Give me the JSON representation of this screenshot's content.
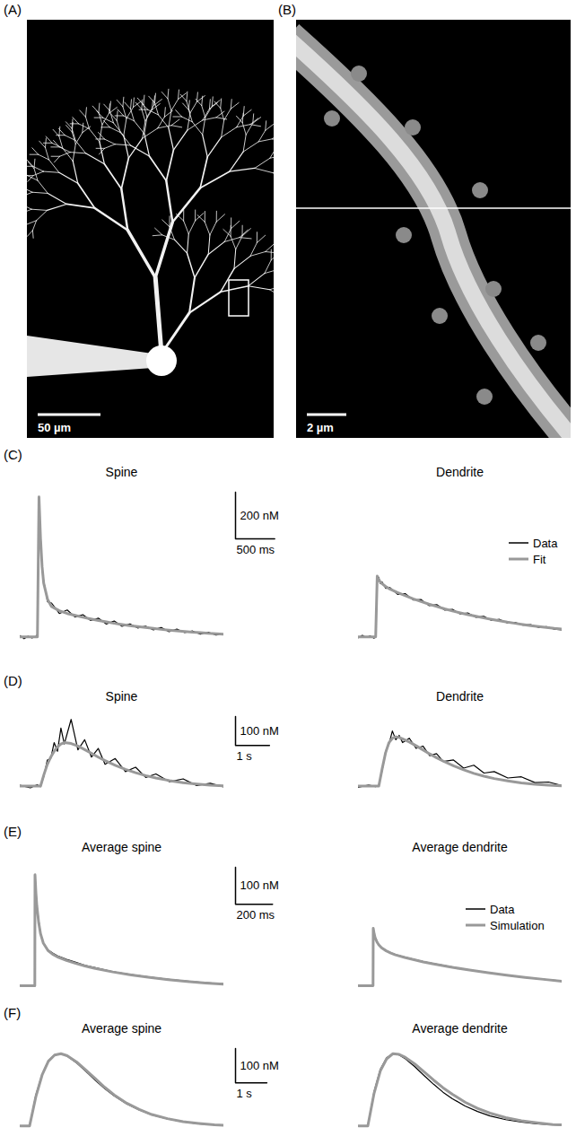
{
  "images": [
    {
      "panel": "(A)",
      "scale_bar": {
        "value": 50,
        "label": "50 µm"
      }
    },
    {
      "panel": "(B)",
      "scale_bar": {
        "value": 2,
        "label": "2 µm"
      }
    }
  ],
  "chart_data": [
    {
      "type": "line",
      "panel": "(C)",
      "tick_labels": false,
      "legend": "right",
      "xlim": [
        0,
        2600
      ],
      "ylim": [
        -30,
        620
      ],
      "scale_bar": {
        "y": {
          "value": 200,
          "label": "200 nM"
        },
        "x": {
          "value": 500,
          "label": "500 ms"
        }
      },
      "x": [
        0,
        50,
        100,
        150,
        200,
        220,
        240,
        260,
        280,
        300,
        350,
        400,
        500,
        600,
        700,
        800,
        900,
        1000,
        1100,
        1200,
        1300,
        1400,
        1500,
        1600,
        1700,
        1800,
        1900,
        2000,
        2100,
        2200,
        2300,
        2400,
        2500,
        2600
      ],
      "subplots": [
        {
          "title": "Spine",
          "series": [
            {
              "name": "Data",
              "color": "#000000",
              "values": [
                5,
                -8,
                3,
                -5,
                2,
                10,
                590,
                430,
                290,
                240,
                150,
                145,
                100,
                115,
                85,
                95,
                70,
                80,
                55,
                68,
                45,
                55,
                38,
                46,
                30,
                40,
                22,
                33,
                18,
                25,
                12,
                20,
                8,
                12
              ]
            },
            {
              "name": "Fit",
              "color": "#999999",
              "values": [
                0,
                0,
                0,
                0,
                0,
                0,
                600,
                420,
                300,
                230,
                160,
                130,
                112,
                100,
                92,
                84,
                77,
                70,
                64,
                58,
                53,
                48,
                44,
                40,
                36,
                32,
                29,
                26,
                23,
                20,
                18,
                15,
                13,
                11
              ]
            }
          ]
        },
        {
          "title": "Dendrite",
          "series": [
            {
              "name": "Data",
              "color": "#000000",
              "values": [
                -4,
                6,
                -3,
                4,
                -6,
                3,
                250,
                255,
                228,
                236,
                208,
                212,
                182,
                185,
                158,
                160,
                134,
                138,
                115,
                118,
                98,
                102,
                84,
                88,
                70,
                75,
                60,
                62,
                50,
                52,
                40,
                44,
                33,
                30
              ]
            },
            {
              "name": "Fit",
              "color": "#999999",
              "values": [
                0,
                0,
                0,
                0,
                0,
                0,
                260,
                245,
                235,
                228,
                215,
                205,
                190,
                176,
                163,
                151,
                140,
                130,
                120,
                111,
                103,
                95,
                88,
                81,
                75,
                69,
                63,
                58,
                53,
                48,
                44,
                40,
                36,
                33
              ]
            }
          ]
        }
      ]
    },
    {
      "type": "line",
      "panel": "(D)",
      "tick_labels": false,
      "xlim": [
        0,
        6
      ],
      "ylim": [
        -20,
        240
      ],
      "scale_bar": {
        "y": {
          "value": 100,
          "label": "100 nM"
        },
        "x": {
          "value": 1,
          "label": "1 s"
        }
      },
      "x": [
        0,
        0.3,
        0.5,
        0.6,
        0.7,
        0.8,
        0.9,
        1.0,
        1.1,
        1.2,
        1.3,
        1.5,
        1.7,
        1.9,
        2.1,
        2.3,
        2.5,
        2.8,
        3.1,
        3.4,
        3.7,
        4.0,
        4.4,
        4.8,
        5.2,
        5.6,
        6.0
      ],
      "subplots": [
        {
          "title": "Spine",
          "series": [
            {
              "color": "#000000",
              "values": [
                3,
                -6,
                5,
                -2,
                35,
                90,
                95,
                150,
                120,
                200,
                145,
                230,
                125,
                160,
                100,
                130,
                75,
                95,
                50,
                65,
                30,
                42,
                15,
                25,
                2,
                10,
                -3
              ]
            },
            {
              "color": "#999999",
              "values": [
                0,
                0,
                0,
                0,
                40,
                75,
                100,
                120,
                135,
                145,
                150,
                147,
                138,
                126,
                113,
                100,
                88,
                72,
                58,
                46,
                36,
                28,
                19,
                12,
                7,
                3,
                1
              ]
            }
          ]
        },
        {
          "title": "Dendrite",
          "series": [
            {
              "color": "#000000",
              "values": [
                -4,
                4,
                -2,
                3,
                55,
                120,
                145,
                190,
                160,
                175,
                150,
                165,
                130,
                138,
                105,
                112,
                85,
                90,
                62,
                72,
                45,
                50,
                28,
                32,
                12,
                14,
                2
              ]
            },
            {
              "color": "#999999",
              "values": [
                0,
                0,
                0,
                0,
                60,
                115,
                150,
                165,
                170,
                168,
                163,
                152,
                139,
                125,
                111,
                98,
                86,
                70,
                56,
                44,
                34,
                26,
                18,
                11,
                6,
                3,
                1
              ]
            }
          ]
        }
      ]
    },
    {
      "type": "line",
      "panel": "(E)",
      "tick_labels": false,
      "legend": "right",
      "xlim": [
        0,
        1100
      ],
      "ylim": [
        -10,
        320
      ],
      "scale_bar": {
        "y": {
          "value": 100,
          "label": "100 nM"
        },
        "x": {
          "value": 200,
          "label": "200 ms"
        }
      },
      "x": [
        0,
        60,
        79,
        80,
        85,
        90,
        100,
        110,
        125,
        150,
        175,
        200,
        250,
        300,
        350,
        400,
        500,
        600,
        700,
        800,
        900,
        1000,
        1100
      ],
      "subplots": [
        {
          "title": "Average spine",
          "series": [
            {
              "name": "Data",
              "color": "#000000",
              "values": [
                0,
                0,
                0,
                300,
                255,
                220,
                175,
                142,
                116,
                97,
                88,
                81,
                71,
                63,
                55,
                49,
                38,
                30,
                23,
                17,
                12,
                8,
                5
              ]
            },
            {
              "name": "Simulation",
              "color": "#999999",
              "values": [
                0,
                0,
                0,
                300,
                250,
                215,
                170,
                140,
                115,
                95,
                85,
                78,
                68,
                60,
                53,
                47,
                37,
                29,
                22,
                16,
                11,
                7,
                4
              ]
            }
          ]
        },
        {
          "title": "Average dendrite",
          "series": [
            {
              "name": "Data",
              "color": "#000000",
              "values": [
                0,
                0,
                0,
                155,
                142,
                132,
                120,
                111,
                103,
                95,
                89,
                84,
                77,
                71,
                65,
                60,
                51,
                42,
                35,
                28,
                22,
                17,
                13
              ]
            },
            {
              "name": "Simulation",
              "color": "#999999",
              "values": [
                0,
                0,
                0,
                155,
                140,
                130,
                118,
                110,
                102,
                94,
                88,
                83,
                76,
                70,
                64,
                59,
                50,
                42,
                35,
                28,
                22,
                17,
                12
              ]
            }
          ]
        }
      ]
    },
    {
      "type": "line",
      "panel": "(F)",
      "tick_labels": false,
      "xlim": [
        0,
        6.5
      ],
      "ylim": [
        -10,
        225
      ],
      "scale_bar": {
        "y": {
          "value": 100,
          "label": "100 nM"
        },
        "x": {
          "value": 1,
          "label": "1 s"
        }
      },
      "x": [
        0,
        0.2,
        0.3,
        0.5,
        0.7,
        0.9,
        1.1,
        1.3,
        1.5,
        1.8,
        2.1,
        2.4,
        2.7,
        3.0,
        3.4,
        3.8,
        4.2,
        4.7,
        5.2,
        5.7,
        6.2,
        6.5
      ],
      "subplots": [
        {
          "title": "Average spine",
          "series": [
            {
              "color": "#000000",
              "values": [
                0,
                0,
                0,
                90,
                150,
                190,
                207,
                210,
                203,
                183,
                158,
                132,
                108,
                87,
                64,
                46,
                32,
                20,
                12,
                6,
                3,
                2
              ]
            },
            {
              "color": "#999999",
              "values": [
                0,
                0,
                0,
                85,
                148,
                188,
                206,
                210,
                204,
                186,
                162,
                137,
                112,
                90,
                66,
                48,
                33,
                21,
                12,
                7,
                3,
                2
              ]
            }
          ]
        },
        {
          "title": "Average dendrite",
          "series": [
            {
              "color": "#000000",
              "values": [
                0,
                0,
                0,
                100,
                165,
                198,
                210,
                206,
                195,
                172,
                146,
                121,
                98,
                79,
                58,
                42,
                29,
                18,
                11,
                6,
                3,
                2
              ]
            },
            {
              "color": "#999999",
              "values": [
                0,
                0,
                0,
                95,
                160,
                195,
                210,
                208,
                199,
                180,
                157,
                133,
                111,
                92,
                69,
                51,
                37,
                24,
                15,
                9,
                4,
                3
              ]
            }
          ]
        }
      ]
    }
  ]
}
